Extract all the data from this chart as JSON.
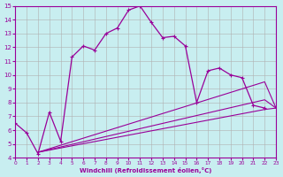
{
  "xlabel": "Windchill (Refroidissement éolien,°C)",
  "xlim": [
    0,
    23
  ],
  "ylim": [
    4,
    15
  ],
  "xticks": [
    0,
    1,
    2,
    3,
    4,
    5,
    6,
    7,
    8,
    9,
    10,
    11,
    12,
    13,
    14,
    15,
    16,
    17,
    18,
    19,
    20,
    21,
    22,
    23
  ],
  "yticks": [
    4,
    5,
    6,
    7,
    8,
    9,
    10,
    11,
    12,
    13,
    14,
    15
  ],
  "bg_color": "#c8eef0",
  "line_color": "#990099",
  "grid_color": "#b0b0b0",
  "line1_x": [
    0,
    1,
    2,
    3,
    4,
    5,
    6,
    7,
    8,
    9,
    10,
    11,
    12,
    13,
    14,
    15,
    16,
    17,
    18,
    19,
    20,
    21,
    22
  ],
  "line1_y": [
    6.5,
    5.8,
    4.3,
    7.3,
    5.2,
    11.3,
    12.1,
    11.8,
    13.0,
    13.4,
    14.7,
    15.0,
    13.8,
    12.7,
    12.8,
    12.1,
    8.0,
    10.3,
    10.5,
    10.0,
    9.8,
    7.8,
    7.6
  ],
  "line2_x": [
    2,
    22,
    23
  ],
  "line2_y": [
    4.4,
    9.5,
    7.6
  ],
  "line3_x": [
    2,
    22,
    23
  ],
  "line3_y": [
    4.4,
    8.2,
    7.6
  ],
  "line4_x": [
    2,
    22,
    23
  ],
  "line4_y": [
    4.4,
    7.5,
    7.6
  ]
}
